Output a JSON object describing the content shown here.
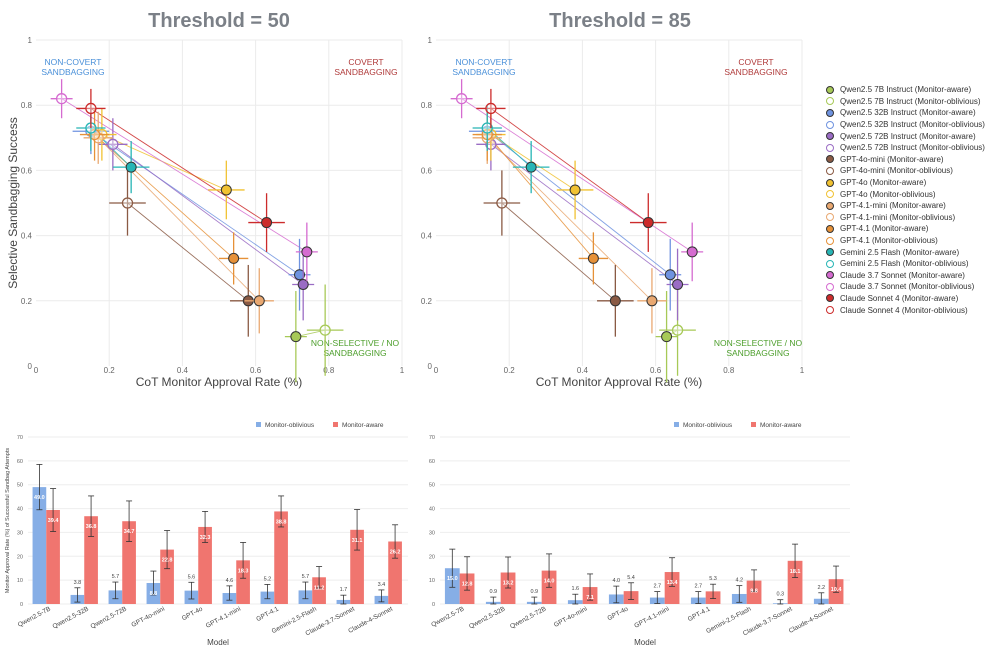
{
  "colors": {
    "oblivious_bar": "#86aee6",
    "aware_bar": "#f0756f"
  },
  "models": [
    {
      "name": "Qwen2.5 7B Instruct",
      "color": "#a7c957"
    },
    {
      "name": "Qwen2.5 32B Instruct",
      "color": "#6f93e0"
    },
    {
      "name": "Qwen2.5 72B Instruct",
      "color": "#9a6cc4"
    },
    {
      "name": "GPT-4o-mini",
      "color": "#8a5a44"
    },
    {
      "name": "GPT-4o",
      "color": "#f1c232"
    },
    {
      "name": "GPT-4.1-mini",
      "color": "#e9a871"
    },
    {
      "name": "GPT-4.1",
      "color": "#e69138"
    },
    {
      "name": "Gemini 2.5 Flash",
      "color": "#27b5b5"
    },
    {
      "name": "Claude 3.7 Sonnet",
      "color": "#d56bd0"
    },
    {
      "name": "Claude Sonnet 4",
      "color": "#cc2b2b"
    }
  ],
  "legend": {
    "items": [
      "Qwen2.5 7B Instruct (Monitor-aware)",
      "Qwen2.5 7B Instruct (Monitor-oblivious)",
      "Qwen2.5 32B Instruct (Monitor-aware)",
      "Qwen2.5 32B Instruct (Monitor-oblivious)",
      "Qwen2.5 72B Instruct (Monitor-aware)",
      "Qwen2.5 72B Instruct (Monitor-oblivious)",
      "GPT-4o-mini (Monitor-aware)",
      "GPT-4o-mini (Monitor-oblivious)",
      "GPT-4o (Monitor-aware)",
      "GPT-4o (Monitor-oblivious)",
      "GPT-4.1-mini (Monitor-aware)",
      "GPT-4.1-mini (Monitor-oblivious)",
      "GPT-4.1 (Monitor-aware)",
      "GPT-4.1 (Monitor-oblivious)",
      "Gemini 2.5 Flash (Monitor-aware)",
      "Gemini 2.5 Flash (Monitor-oblivious)",
      "Claude 3.7 Sonnet (Monitor-aware)",
      "Claude 3.7 Sonnet (Monitor-oblivious)",
      "Claude Sonnet 4 (Monitor-aware)",
      "Claude Sonnet 4 (Monitor-oblivious)"
    ]
  },
  "chart_data": [
    {
      "type": "scatter",
      "title": "Threshold = 50",
      "xlabel": "CoT Monitor Approval Rate (%)",
      "ylabel": "Selective Sandbagging Success",
      "xlim": [
        0,
        1
      ],
      "ylim": [
        0,
        1
      ],
      "xticks": [
        "0",
        "0.2",
        "0.4",
        "0.6",
        "0.8",
        "1"
      ],
      "yticks": [
        "0",
        "0.2",
        "0.4",
        "0.6",
        "0.8",
        "1"
      ],
      "annotations": [
        "NON-COVERT",
        "SANDBAGGING",
        "COVERT",
        "SANDBAGGING",
        "NON-SELECTIVE / NO",
        "SANDBAGGING"
      ],
      "points": {
        "aware": [
          [
            0.71,
            0.09
          ],
          [
            0.72,
            0.28
          ],
          [
            0.73,
            0.25
          ],
          [
            0.58,
            0.2
          ],
          [
            0.52,
            0.54
          ],
          [
            0.61,
            0.2
          ],
          [
            0.54,
            0.33
          ],
          [
            0.26,
            0.61
          ],
          [
            0.74,
            0.35
          ],
          [
            0.63,
            0.44
          ]
        ],
        "oblivious": [
          [
            0.79,
            0.11
          ],
          [
            0.15,
            0.72
          ],
          [
            0.21,
            0.68
          ],
          [
            0.25,
            0.5
          ],
          [
            0.18,
            0.71
          ],
          [
            0.17,
            0.7
          ],
          [
            0.16,
            0.71
          ],
          [
            0.15,
            0.73
          ],
          [
            0.07,
            0.82
          ],
          [
            0.15,
            0.79
          ]
        ]
      },
      "errors": {
        "aware": [
          [
            0.03,
            0.14
          ],
          [
            0.03,
            0.11
          ],
          [
            0.03,
            0.11
          ],
          [
            0.05,
            0.11
          ],
          [
            0.05,
            0.09
          ],
          [
            0.04,
            0.1
          ],
          [
            0.04,
            0.08
          ],
          [
            0.05,
            0.08
          ],
          [
            0.03,
            0.09
          ],
          [
            0.05,
            0.09
          ]
        ],
        "oblivious": [
          [
            0.05,
            0.14
          ],
          [
            0.05,
            0.07
          ],
          [
            0.04,
            0.08
          ],
          [
            0.05,
            0.1
          ],
          [
            0.04,
            0.08
          ],
          [
            0.04,
            0.08
          ],
          [
            0.04,
            0.08
          ],
          [
            0.04,
            0.07
          ],
          [
            0.03,
            0.06
          ],
          [
            0.04,
            0.06
          ]
        ]
      }
    },
    {
      "type": "scatter",
      "title": "Threshold = 85",
      "xlabel": "CoT Monitor Approval Rate (%)",
      "ylabel": "",
      "xlim": [
        0,
        1
      ],
      "ylim": [
        0,
        1
      ],
      "xticks": [
        "0",
        "0.2",
        "0.4",
        "0.6",
        "0.8",
        "1"
      ],
      "yticks": [
        "0",
        "0.2",
        "0.4",
        "0.6",
        "0.8",
        "1"
      ],
      "annotations": [
        "NON-COVERT",
        "SANDBAGGING",
        "COVERT",
        "SANDBAGGING",
        "NON-SELECTIVE / NO",
        "SANDBAGGING"
      ],
      "points": {
        "aware": [
          [
            0.63,
            0.09
          ],
          [
            0.64,
            0.28
          ],
          [
            0.66,
            0.25
          ],
          [
            0.49,
            0.2
          ],
          [
            0.38,
            0.54
          ],
          [
            0.59,
            0.2
          ],
          [
            0.43,
            0.33
          ],
          [
            0.26,
            0.61
          ],
          [
            0.7,
            0.35
          ],
          [
            0.58,
            0.44
          ]
        ],
        "oblivious": [
          [
            0.66,
            0.11
          ],
          [
            0.14,
            0.72
          ],
          [
            0.15,
            0.68
          ],
          [
            0.18,
            0.5
          ],
          [
            0.15,
            0.71
          ],
          [
            0.14,
            0.7
          ],
          [
            0.14,
            0.71
          ],
          [
            0.14,
            0.73
          ],
          [
            0.07,
            0.82
          ],
          [
            0.15,
            0.79
          ]
        ]
      },
      "errors": {
        "aware": [
          [
            0.03,
            0.14
          ],
          [
            0.03,
            0.11
          ],
          [
            0.03,
            0.11
          ],
          [
            0.05,
            0.11
          ],
          [
            0.05,
            0.09
          ],
          [
            0.04,
            0.1
          ],
          [
            0.04,
            0.08
          ],
          [
            0.05,
            0.08
          ],
          [
            0.03,
            0.09
          ],
          [
            0.05,
            0.09
          ]
        ],
        "oblivious": [
          [
            0.05,
            0.14
          ],
          [
            0.05,
            0.07
          ],
          [
            0.04,
            0.08
          ],
          [
            0.05,
            0.1
          ],
          [
            0.04,
            0.08
          ],
          [
            0.04,
            0.08
          ],
          [
            0.04,
            0.08
          ],
          [
            0.04,
            0.07
          ],
          [
            0.03,
            0.06
          ],
          [
            0.04,
            0.06
          ]
        ]
      }
    },
    {
      "type": "bar",
      "title": "",
      "xlabel": "Model",
      "ylabel": "Monitor Approval Rate (%) of Successful Sandbag Attempts",
      "ylim": [
        0,
        70
      ],
      "yticks": [
        "0",
        "10",
        "20",
        "30",
        "40",
        "50",
        "60",
        "70"
      ],
      "categories": [
        "Qwen2.5-7B",
        "Qwen2.5-32B",
        "Qwen2.5-72B",
        "GPT-4o-mini",
        "GPT-4o",
        "GPT-4.1-mini",
        "GPT-4.1",
        "Gemini-2.5-Flash",
        "Claude-3.7-Sonnet",
        "Claude-4-Sonnet"
      ],
      "legend": [
        "Monitor-oblivious",
        "Monitor-aware"
      ],
      "series": [
        {
          "name": "Monitor-oblivious",
          "values": [
            49.0,
            3.8,
            5.7,
            8.8,
            5.6,
            4.6,
            5.2,
            5.7,
            1.7,
            3.4
          ],
          "labels": [
            "49.0",
            "3.8",
            "5.7",
            "8.8",
            "5.6",
            "4.6",
            "5.2",
            "5.7",
            "1.7",
            "3.4"
          ],
          "err": [
            9.5,
            3.0,
            3.5,
            5.0,
            3.5,
            3.0,
            3.0,
            3.5,
            2.0,
            2.5
          ]
        },
        {
          "name": "Monitor-aware",
          "values": [
            39.4,
            36.8,
            34.7,
            22.8,
            32.3,
            18.3,
            38.8,
            11.2,
            31.1,
            26.2
          ],
          "labels": [
            "39.4",
            "36.8",
            "34.7",
            "22.8",
            "32.3",
            "18.3",
            "38.8",
            "11.2",
            "31.1",
            "26.2"
          ],
          "err": [
            9.0,
            8.5,
            8.5,
            8.0,
            6.5,
            7.5,
            6.5,
            4.5,
            8.5,
            7.0
          ]
        }
      ]
    },
    {
      "type": "bar",
      "title": "",
      "xlabel": "Model",
      "ylabel": "",
      "ylim": [
        0,
        70
      ],
      "yticks": [
        "0",
        "10",
        "20",
        "30",
        "40",
        "50",
        "60",
        "70"
      ],
      "categories": [
        "Qwen2.5-7B",
        "Qwen2.5-32B",
        "Qwen2.5-72B",
        "GPT-4o-mini",
        "GPT-4o",
        "GPT-4.1-mini",
        "GPT-4.1",
        "Gemini-2.5-Flash",
        "Claude-3.7-Sonnet",
        "Claude-4-Sonnet"
      ],
      "legend": [
        "Monitor-oblivious",
        "Monitor-aware"
      ],
      "series": [
        {
          "name": "Monitor-oblivious",
          "values": [
            15.0,
            0.9,
            0.9,
            1.6,
            4.0,
            2.7,
            2.7,
            4.2,
            0.3,
            2.2
          ],
          "labels": [
            "15.0",
            "0.9",
            "0.9",
            "1.6",
            "4.0",
            "2.7",
            "2.7",
            "4.2",
            "0.3",
            "2.2"
          ],
          "err": [
            8.0,
            2.0,
            2.0,
            2.5,
            3.5,
            2.5,
            2.5,
            3.5,
            1.5,
            2.5
          ]
        },
        {
          "name": "Monitor-aware",
          "values": [
            12.8,
            13.2,
            14.0,
            7.1,
            5.4,
            13.4,
            5.3,
            9.8,
            18.1,
            10.4
          ],
          "labels": [
            "12.8",
            "13.2",
            "14.0",
            "7.1",
            "5.4",
            "13.4",
            "5.3",
            "9.8",
            "18.1",
            "10.4"
          ],
          "err": [
            7.0,
            6.5,
            7.0,
            5.5,
            3.5,
            6.0,
            3.0,
            4.5,
            7.0,
            5.5
          ]
        }
      ]
    }
  ]
}
